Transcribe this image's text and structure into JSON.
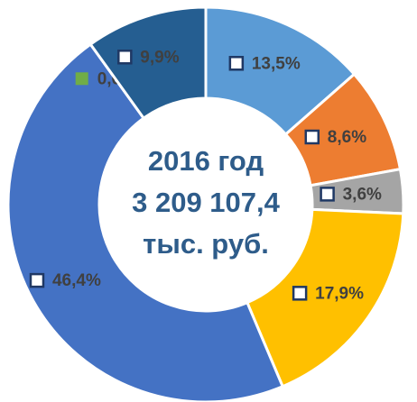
{
  "chart_data": {
    "type": "donut",
    "center_text": [
      "2016 год",
      "3 209 107,4",
      "тыс. руб."
    ],
    "values": [
      13.5,
      8.6,
      3.6,
      17.9,
      46.4,
      0.0,
      9.9
    ],
    "value_labels": [
      "13,5%",
      "8,6%",
      "3,6%",
      "17,9%",
      "46,4%",
      "0,0%",
      "9,9%"
    ],
    "colors": [
      "#5B9BD5",
      "#ED7D31",
      "#A5A5A5",
      "#FFC000",
      "#4472C4",
      "#70AD47",
      "#255E91"
    ]
  }
}
